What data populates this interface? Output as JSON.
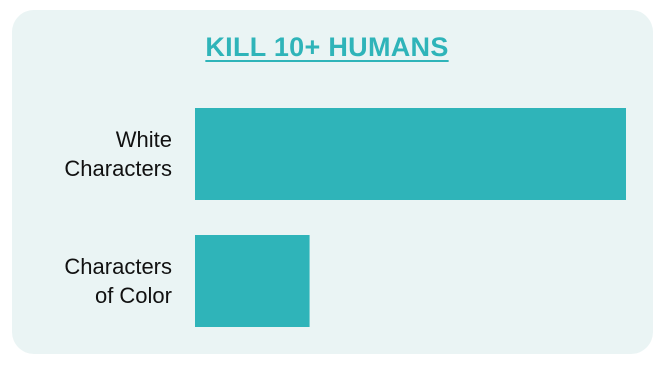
{
  "chart_data": {
    "type": "bar",
    "orientation": "horizontal",
    "title": "KILL 10+ HUMANS",
    "categories": [
      "White Characters",
      "Characters of Color"
    ],
    "category_lines": [
      [
        "White",
        "Characters"
      ],
      [
        "Characters",
        "of Color"
      ]
    ],
    "values": [
      79,
      21
    ],
    "xlim": [
      0,
      79
    ],
    "grid": false,
    "legend": "none",
    "xlabel": "",
    "ylabel": ""
  },
  "colors": {
    "bar": "#2fb4b9",
    "title": "#2fb4b9",
    "card_background": "#eaf4f4"
  }
}
